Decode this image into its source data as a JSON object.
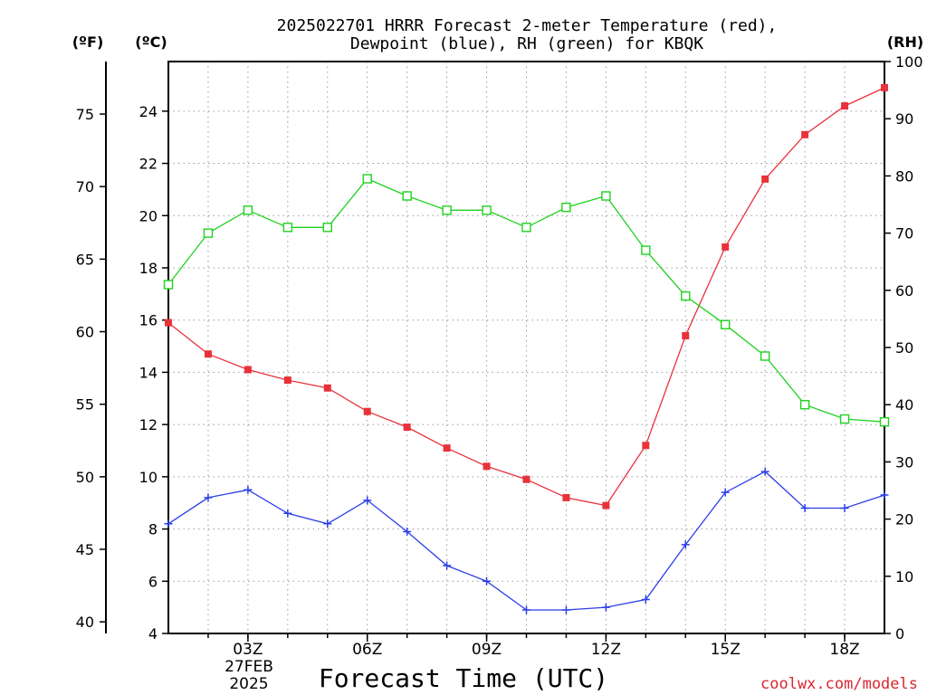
{
  "chart_data": {
    "type": "line",
    "title": [
      "2025022701 HRRR Forecast 2-meter Temperature (red),",
      "Dewpoint (blue), RH (green) for KBQK"
    ],
    "xlabel": "Forecast Time (UTC)",
    "x_hours": [
      1,
      2,
      3,
      4,
      5,
      6,
      7,
      8,
      9,
      10,
      11,
      12,
      13,
      14,
      15,
      16,
      17,
      18,
      19
    ],
    "xlim": [
      1,
      19
    ],
    "x_ticks": [
      {
        "hour": 3,
        "label": "03Z"
      },
      {
        "hour": 6,
        "label": "06Z"
      },
      {
        "hour": 9,
        "label": "09Z"
      },
      {
        "hour": 12,
        "label": "12Z"
      },
      {
        "hour": 15,
        "label": "15Z"
      },
      {
        "hour": 18,
        "label": "18Z"
      }
    ],
    "date_label": [
      "27FEB",
      "2025"
    ],
    "left_axis": {
      "unit_label": "(ºC)",
      "range": [
        4,
        25.9
      ],
      "ticks": [
        4,
        6,
        8,
        10,
        12,
        14,
        16,
        18,
        20,
        22,
        24
      ]
    },
    "far_left_axis": {
      "unit_label": "(ºF)",
      "ticks": [
        40,
        45,
        50,
        55,
        60,
        65,
        70,
        75
      ]
    },
    "right_axis": {
      "unit_label": "(RH)",
      "range": [
        0,
        100
      ],
      "ticks": [
        0,
        10,
        20,
        30,
        40,
        50,
        60,
        70,
        80,
        90,
        100
      ]
    },
    "grid": true,
    "series": [
      {
        "name": "Temperature",
        "axis": "left",
        "color": "#e8323a",
        "marker": "filled-square",
        "values": [
          15.9,
          14.7,
          14.1,
          13.7,
          13.4,
          12.5,
          11.9,
          11.1,
          10.4,
          9.9,
          9.2,
          8.9,
          11.2,
          15.4,
          18.8,
          21.4,
          23.1,
          24.2,
          24.9
        ]
      },
      {
        "name": "Dewpoint",
        "axis": "left",
        "color": "#2b3fe8",
        "marker": "plus",
        "values": [
          8.2,
          9.2,
          9.5,
          8.6,
          8.2,
          9.1,
          7.9,
          6.6,
          6.0,
          4.9,
          4.9,
          5.0,
          5.3,
          7.4,
          9.4,
          10.2,
          8.8,
          8.8,
          9.3
        ]
      },
      {
        "name": "RH",
        "axis": "right",
        "color": "#1fd21f",
        "marker": "open-square",
        "values": [
          61,
          70,
          74,
          71,
          71,
          79.5,
          76.5,
          74,
          74,
          71,
          74.5,
          76.5,
          67,
          59,
          54,
          48.5,
          40,
          37.5,
          37
        ]
      }
    ],
    "watermark": "coolwx.com/models"
  }
}
